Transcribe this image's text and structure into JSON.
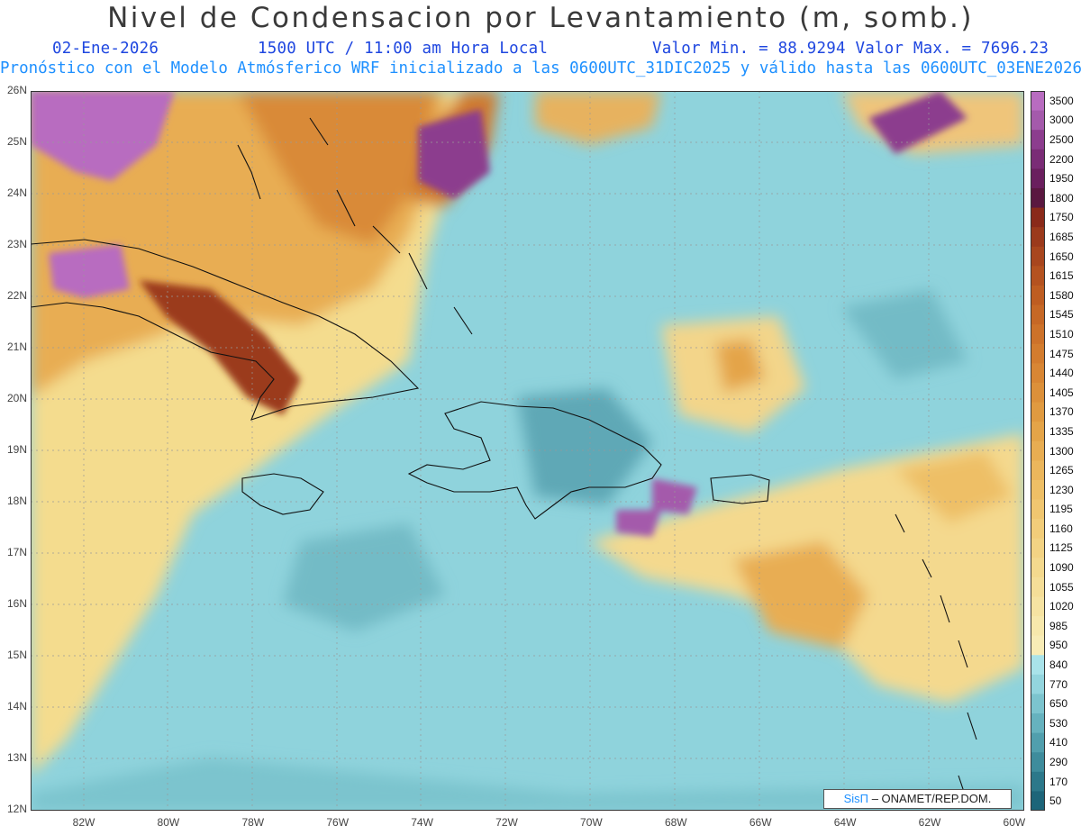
{
  "title": "Nivel de Condensacion por Levantamiento (m, somb.)",
  "header": {
    "date": "02-Ene-2026",
    "time": "1500 UTC / 11:00 am Hora Local",
    "minmax": "Valor Min. = 88.9294  Valor Max. = 7696.23"
  },
  "subtitle": "Pronóstico con el Modelo Atmósferico WRF inicializado a las 0600UTC_31DIC2025 y válido hasta las  0600UTC_03ENE2026",
  "map": {
    "lat_labels": [
      "26N",
      "25N",
      "24N",
      "23N",
      "22N",
      "21N",
      "20N",
      "19N",
      "18N",
      "17N",
      "16N",
      "15N",
      "14N",
      "13N",
      "12N"
    ],
    "lon_labels": [
      "82W",
      "80W",
      "78W",
      "76W",
      "74W",
      "72W",
      "70W",
      "68W",
      "66W",
      "64W",
      "62W",
      "60W"
    ]
  },
  "colorbar": {
    "labels": [
      "3500",
      "3000",
      "2500",
      "2200",
      "1950",
      "1800",
      "1750",
      "1685",
      "1650",
      "1615",
      "1580",
      "1545",
      "1510",
      "1475",
      "1440",
      "1405",
      "1370",
      "1335",
      "1300",
      "1265",
      "1230",
      "1195",
      "1160",
      "1125",
      "1090",
      "1055",
      "1020",
      "985",
      "950",
      "840",
      "770",
      "650",
      "530",
      "410",
      "290",
      "170",
      "50"
    ],
    "colors": [
      "#b86cc0",
      "#a45aab",
      "#8c3d8e",
      "#7a2c76",
      "#6a1f5e",
      "#5a1840",
      "#8a2a1a",
      "#9b3a1c",
      "#a8461e",
      "#b45220",
      "#be5d22",
      "#c66826",
      "#cd722a",
      "#d37c2e",
      "#d88634",
      "#dc903a",
      "#e09a40",
      "#e4a448",
      "#e8ad52",
      "#ebb65c",
      "#eebf66",
      "#f0c670",
      "#f2cd7a",
      "#f3d384",
      "#f4d98e",
      "#f5de98",
      "#f6e3a2",
      "#f7e8ac",
      "#f8ecb6",
      "#a9e3ea",
      "#93d5de",
      "#7cc4ce",
      "#66b2be",
      "#519fad",
      "#3e8c9c",
      "#2c788a",
      "#1d6579"
    ]
  },
  "credit": {
    "brand": "SisΠ",
    "org": "– ONAMET/REP.DOM."
  }
}
